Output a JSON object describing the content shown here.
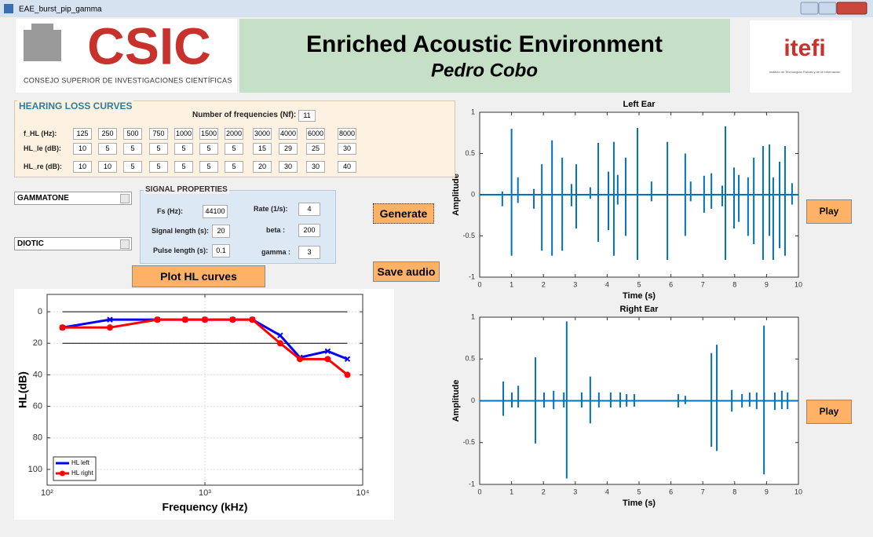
{
  "window": {
    "title": "EAE_burst_pip_gamma"
  },
  "header": {
    "logo_left": "CSIC",
    "logo_left_caption": "Consejo Superior de Investigaciones Científicas",
    "title": "Enriched Acoustic Environment",
    "author": "Pedro Cobo",
    "logo_right": "itefi",
    "logo_right_caption": "Instituto de Tecnologías Físicas y de la Información"
  },
  "hearing_loss": {
    "title": "HEARING LOSS CURVES",
    "nf_label": "Number of frequencies (Nf):",
    "nf": 11,
    "row_labels": [
      "f_HL (Hz):",
      "HL_le (dB):",
      "HL_re (dB):"
    ]
  },
  "controls": {
    "filter": "GAMMATONE",
    "mode": "DIOTIC"
  },
  "signal": {
    "title": "SIGNAL PROPERTIES",
    "fields": [
      {
        "label": "Fs (Hz):",
        "value": 44100
      },
      {
        "label": "Signal length (s):",
        "value": 20
      },
      {
        "label": "Pulse length (s):",
        "value": 0.1
      },
      {
        "label": "Rate (1/s):",
        "value": 4
      },
      {
        "label": "beta :",
        "value": 200
      },
      {
        "label": "gamma :",
        "value": 3
      }
    ]
  },
  "buttons": {
    "plot": "Plot HL curves",
    "generate": "Generate",
    "save": "Save audio",
    "play_left": "Play",
    "play_right": "Play"
  },
  "chart_data": [
    {
      "type": "line",
      "xlabel": "Frequency (kHz)",
      "ylabel": "HL(dB)",
      "xscale": "log",
      "yinverted": true,
      "grid": true,
      "legend": "lower left",
      "x": [
        125,
        250,
        500,
        750,
        1000,
        1500,
        2000,
        3000,
        4000,
        6000,
        8000
      ],
      "series": [
        {
          "name": "HL left",
          "color": "#0000ff",
          "marker": "x",
          "values": [
            10,
            5,
            5,
            5,
            5,
            5,
            5,
            15,
            29,
            25,
            30
          ]
        },
        {
          "name": "HL right",
          "color": "#ff0000",
          "marker": "o",
          "values": [
            10,
            10,
            5,
            5,
            5,
            5,
            5,
            20,
            30,
            30,
            40
          ]
        }
      ],
      "hlines": [
        0,
        20
      ],
      "hline_color": "#000000",
      "xlim": [
        100,
        10000
      ],
      "xticks": [
        {
          "value": 100,
          "label": "10²"
        },
        {
          "value": 1000,
          "label": "10³"
        },
        {
          "value": 10000,
          "label": "10⁴"
        }
      ],
      "ylim": [
        -11,
        110
      ],
      "yticks": [
        0,
        20,
        40,
        60,
        80,
        100
      ]
    },
    {
      "type": "pulse",
      "title": "Left Ear",
      "xlabel": "Time (s)",
      "ylabel": "Amplitude",
      "color": "#0072bd",
      "x": [
        0.71,
        1.0,
        1.2,
        1.7,
        1.95,
        2.27,
        2.59,
        2.88,
        3.03,
        3.47,
        3.72,
        4.04,
        4.21,
        4.33,
        4.58,
        4.95,
        5.39,
        5.89,
        6.45,
        6.62,
        7.04,
        7.27,
        7.61,
        7.71,
        7.98,
        8.13,
        8.42,
        8.6,
        8.89,
        9.09,
        9.21,
        9.41,
        9.58,
        9.8
      ],
      "high": [
        0.04,
        0.8,
        0.21,
        0.07,
        0.37,
        0.66,
        0.45,
        0.13,
        0.37,
        0.09,
        0.63,
        0.28,
        0.64,
        0.24,
        0.45,
        0.81,
        0.16,
        0.64,
        0.5,
        0.16,
        0.23,
        0.26,
        0.11,
        0.83,
        0.33,
        0.24,
        0.21,
        0.45,
        0.59,
        0.61,
        0.21,
        0.4,
        0.59,
        0.14
      ],
      "low": [
        -0.14,
        -0.74,
        -0.1,
        -0.17,
        -0.68,
        -0.74,
        -0.68,
        -0.14,
        -0.41,
        -0.05,
        -0.57,
        -0.43,
        -0.74,
        -0.12,
        -0.5,
        -0.79,
        -0.08,
        -0.79,
        -0.5,
        -0.08,
        -0.22,
        -0.17,
        -0.14,
        -0.79,
        -0.41,
        -0.33,
        -0.5,
        -0.6,
        -0.79,
        -0.5,
        -0.79,
        -0.65,
        -0.74,
        -0.12
      ],
      "xlim": [
        0,
        10
      ],
      "xticks": [
        0,
        1,
        2,
        3,
        4,
        5,
        6,
        7,
        8,
        9,
        10
      ],
      "ylim": [
        -1,
        1
      ],
      "yticks": [
        -1,
        -0.5,
        0,
        0.5,
        1
      ]
    },
    {
      "type": "pulse",
      "title": "Right Ear",
      "xlabel": "Time (s)",
      "ylabel": "Amplitude",
      "color": "#0072bd",
      "x": [
        0.74,
        1.01,
        1.21,
        1.75,
        2.02,
        2.32,
        2.64,
        2.73,
        3.2,
        3.47,
        3.74,
        4.11,
        4.41,
        4.61,
        4.85,
        6.23,
        6.45,
        7.27,
        7.44,
        7.91,
        8.23,
        8.47,
        8.69,
        8.92,
        9.26,
        9.48,
        9.66
      ],
      "high": [
        0.23,
        0.1,
        0.18,
        0.52,
        0.1,
        0.12,
        0.1,
        0.95,
        0.1,
        0.29,
        0.1,
        0.1,
        0.1,
        0.08,
        0.08,
        0.08,
        0.06,
        0.57,
        0.67,
        0.13,
        0.08,
        0.1,
        0.1,
        0.9,
        0.1,
        0.12,
        0.1
      ],
      "low": [
        -0.18,
        -0.08,
        -0.08,
        -0.51,
        -0.08,
        -0.1,
        -0.08,
        -0.93,
        -0.08,
        -0.27,
        -0.08,
        -0.08,
        -0.08,
        -0.07,
        -0.07,
        -0.08,
        -0.04,
        -0.55,
        -0.6,
        -0.13,
        -0.08,
        -0.07,
        -0.1,
        -0.88,
        -0.11,
        -0.1,
        -0.1
      ],
      "xlim": [
        0,
        10
      ],
      "xticks": [
        0,
        1,
        2,
        3,
        4,
        5,
        6,
        7,
        8,
        9,
        10
      ],
      "ylim": [
        -1,
        1
      ],
      "yticks": [
        -1,
        -0.5,
        0,
        0.5,
        1
      ]
    }
  ]
}
